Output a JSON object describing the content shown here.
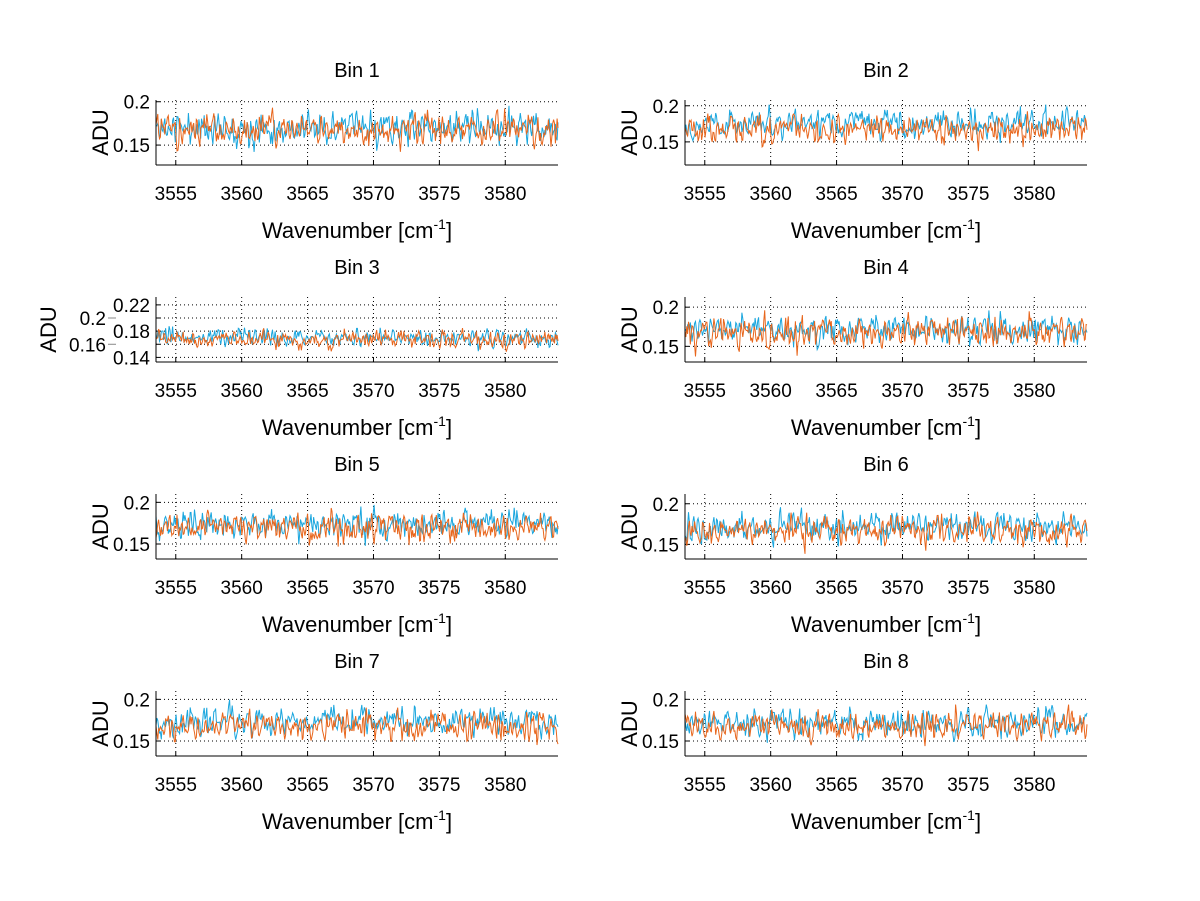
{
  "chart_data": {
    "type": "line",
    "layout": "4x2 subplots",
    "xlabel": "Wavenumber [cm",
    "xlabel_sup": "-1",
    "xlabel_end": "]",
    "ylabel": "ADU",
    "xlim": [
      3553.5,
      3584
    ],
    "xticks": [
      "3555",
      "3560",
      "3565",
      "3570",
      "3575",
      "3580"
    ],
    "grid": true,
    "series_colors": [
      "#1aa6de",
      "#e8661c"
    ],
    "series_note": "two noisy spectra per bin, approx. 460 samples each across the x range",
    "panels": [
      {
        "title": "Bin 1",
        "ylim": [
          0.127,
          0.202
        ],
        "yticks": [
          "0.15",
          "0.2"
        ],
        "mean": [
          0.17,
          0.168
        ],
        "std": [
          0.013,
          0.013
        ],
        "seed": 11
      },
      {
        "title": "Bin 2",
        "ylim": [
          0.118,
          0.208
        ],
        "yticks": [
          "0.15",
          "0.2"
        ],
        "mean": [
          0.175,
          0.168
        ],
        "std": [
          0.013,
          0.013
        ],
        "seed": 22
      },
      {
        "title": "Bin 3",
        "ylim": [
          0.133,
          0.232
        ],
        "yticks": [
          "0.14",
          "0.16",
          "0.18",
          "0.2",
          "0.22"
        ],
        "mean": [
          0.17,
          0.167
        ],
        "std": [
          0.009,
          0.009
        ],
        "seed": 33
      },
      {
        "title": "Bin 4",
        "ylim": [
          0.13,
          0.213
        ],
        "yticks": [
          "0.15",
          "0.2"
        ],
        "mean": [
          0.172,
          0.168
        ],
        "std": [
          0.013,
          0.013
        ],
        "seed": 44
      },
      {
        "title": "Bin 5",
        "ylim": [
          0.132,
          0.21
        ],
        "yticks": [
          "0.15",
          "0.2"
        ],
        "mean": [
          0.174,
          0.169
        ],
        "std": [
          0.012,
          0.012
        ],
        "seed": 55
      },
      {
        "title": "Bin 6",
        "ylim": [
          0.132,
          0.212
        ],
        "yticks": [
          "0.15",
          "0.2"
        ],
        "mean": [
          0.172,
          0.167
        ],
        "std": [
          0.012,
          0.012
        ],
        "seed": 66
      },
      {
        "title": "Bin 7",
        "ylim": [
          0.132,
          0.21
        ],
        "yticks": [
          "0.15",
          "0.2"
        ],
        "mean": [
          0.173,
          0.168
        ],
        "std": [
          0.012,
          0.012
        ],
        "seed": 77
      },
      {
        "title": "Bin 8",
        "ylim": [
          0.132,
          0.21
        ],
        "yticks": [
          "0.15",
          "0.2"
        ],
        "mean": [
          0.172,
          0.168
        ],
        "std": [
          0.012,
          0.012
        ],
        "seed": 88
      }
    ]
  }
}
